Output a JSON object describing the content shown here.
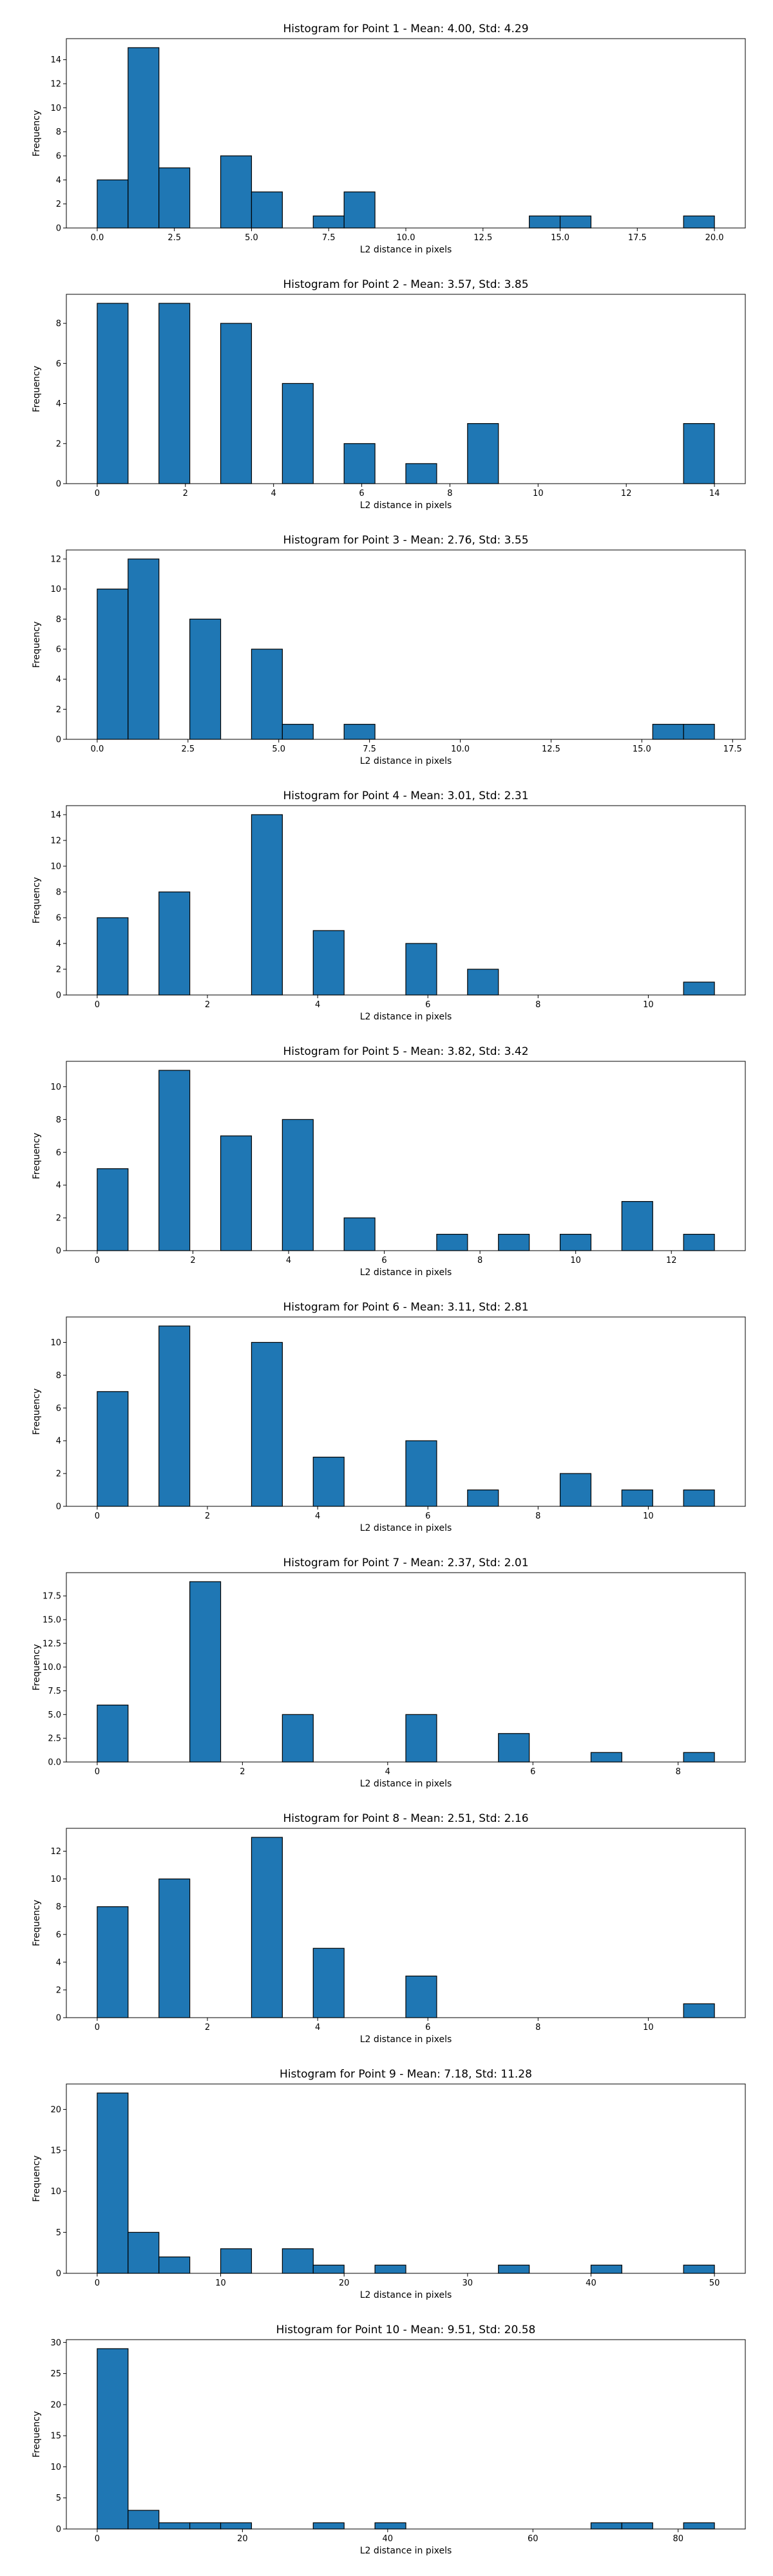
{
  "chart_data": [
    {
      "type": "bar",
      "title": "Histogram for Point 1 - Mean: 4.00, Std: 4.29",
      "xlabel": "L2 distance in pixels",
      "ylabel": "Frequency",
      "xlim": [
        -1.0,
        21.0
      ],
      "ylim": [
        0,
        15.75
      ],
      "xticks": [
        0.0,
        2.5,
        5.0,
        7.5,
        10.0,
        12.5,
        15.0,
        17.5,
        20.0
      ],
      "xtick_labels": [
        "0.0",
        "2.5",
        "5.0",
        "7.5",
        "10.0",
        "12.5",
        "15.0",
        "17.5",
        "20.0"
      ],
      "yticks": [
        0,
        2,
        4,
        6,
        8,
        10,
        12,
        14
      ],
      "ytick_labels": [
        "0",
        "2",
        "4",
        "6",
        "8",
        "10",
        "12",
        "14"
      ],
      "bins": [
        {
          "x0": 0.0,
          "x1": 1.0,
          "count": 4
        },
        {
          "x0": 1.0,
          "x1": 2.0,
          "count": 15
        },
        {
          "x0": 2.0,
          "x1": 3.0,
          "count": 5
        },
        {
          "x0": 4.0,
          "x1": 5.0,
          "count": 6
        },
        {
          "x0": 5.0,
          "x1": 6.0,
          "count": 3
        },
        {
          "x0": 7.0,
          "x1": 8.0,
          "count": 1
        },
        {
          "x0": 8.0,
          "x1": 9.0,
          "count": 3
        },
        {
          "x0": 14.0,
          "x1": 15.0,
          "count": 1
        },
        {
          "x0": 15.0,
          "x1": 16.0,
          "count": 1
        },
        {
          "x0": 19.0,
          "x1": 20.0,
          "count": 1
        }
      ]
    },
    {
      "type": "bar",
      "title": "Histogram for Point 2 - Mean: 3.57, Std: 3.85",
      "xlabel": "L2 distance in pixels",
      "ylabel": "Frequency",
      "xlim": [
        -0.7,
        14.7
      ],
      "ylim": [
        0,
        9.45
      ],
      "xticks": [
        0,
        2,
        4,
        6,
        8,
        10,
        12,
        14
      ],
      "xtick_labels": [
        "0",
        "2",
        "4",
        "6",
        "8",
        "10",
        "12",
        "14"
      ],
      "yticks": [
        0,
        2,
        4,
        6,
        8
      ],
      "ytick_labels": [
        "0",
        "2",
        "4",
        "6",
        "8"
      ],
      "bins": [
        {
          "x0": 0.0,
          "x1": 0.7,
          "count": 9
        },
        {
          "x0": 1.4,
          "x1": 2.1,
          "count": 9
        },
        {
          "x0": 2.8,
          "x1": 3.5,
          "count": 8
        },
        {
          "x0": 4.2,
          "x1": 4.9,
          "count": 5
        },
        {
          "x0": 5.6,
          "x1": 6.3,
          "count": 2
        },
        {
          "x0": 7.0,
          "x1": 7.7,
          "count": 1
        },
        {
          "x0": 8.4,
          "x1": 9.1,
          "count": 3
        },
        {
          "x0": 13.3,
          "x1": 14.0,
          "count": 3
        }
      ]
    },
    {
      "type": "bar",
      "title": "Histogram for Point 3 - Mean: 2.76, Std: 3.55",
      "xlabel": "L2 distance in pixels",
      "ylabel": "Frequency",
      "xlim": [
        -0.85,
        17.85
      ],
      "ylim": [
        0,
        12.6
      ],
      "xticks": [
        0.0,
        2.5,
        5.0,
        7.5,
        10.0,
        12.5,
        15.0,
        17.5
      ],
      "xtick_labels": [
        "0.0",
        "2.5",
        "5.0",
        "7.5",
        "10.0",
        "12.5",
        "15.0",
        "17.5"
      ],
      "yticks": [
        0,
        2,
        4,
        6,
        8,
        10,
        12
      ],
      "ytick_labels": [
        "0",
        "2",
        "4",
        "6",
        "8",
        "10",
        "12"
      ],
      "bins": [
        {
          "x0": 0.0,
          "x1": 0.85,
          "count": 10
        },
        {
          "x0": 0.85,
          "x1": 1.7,
          "count": 12
        },
        {
          "x0": 2.55,
          "x1": 3.4,
          "count": 8
        },
        {
          "x0": 4.25,
          "x1": 5.1,
          "count": 6
        },
        {
          "x0": 5.1,
          "x1": 5.95,
          "count": 1
        },
        {
          "x0": 6.8,
          "x1": 7.65,
          "count": 1
        },
        {
          "x0": 15.3,
          "x1": 16.15,
          "count": 1
        },
        {
          "x0": 16.15,
          "x1": 17.0,
          "count": 1
        }
      ]
    },
    {
      "type": "bar",
      "title": "Histogram for Point 4 - Mean: 3.01, Std: 2.31",
      "xlabel": "L2 distance in pixels",
      "ylabel": "Frequency",
      "xlim": [
        -0.56,
        11.76
      ],
      "ylim": [
        0,
        14.7
      ],
      "xticks": [
        0,
        2,
        4,
        6,
        8,
        10
      ],
      "xtick_labels": [
        "0",
        "2",
        "4",
        "6",
        "8",
        "10"
      ],
      "yticks": [
        0,
        2,
        4,
        6,
        8,
        10,
        12,
        14
      ],
      "ytick_labels": [
        "0",
        "2",
        "4",
        "6",
        "8",
        "10",
        "12",
        "14"
      ],
      "bins": [
        {
          "x0": 0.0,
          "x1": 0.56,
          "count": 6
        },
        {
          "x0": 1.12,
          "x1": 1.68,
          "count": 8
        },
        {
          "x0": 2.8,
          "x1": 3.36,
          "count": 14
        },
        {
          "x0": 3.92,
          "x1": 4.48,
          "count": 5
        },
        {
          "x0": 5.6,
          "x1": 6.16,
          "count": 4
        },
        {
          "x0": 6.72,
          "x1": 7.28,
          "count": 2
        },
        {
          "x0": 10.64,
          "x1": 11.2,
          "count": 1
        }
      ]
    },
    {
      "type": "bar",
      "title": "Histogram for Point 5 - Mean: 3.82, Std: 3.42",
      "xlabel": "L2 distance in pixels",
      "ylabel": "Frequency",
      "xlim": [
        -0.645,
        13.545
      ],
      "ylim": [
        0,
        11.55
      ],
      "xticks": [
        0,
        2,
        4,
        6,
        8,
        10,
        12
      ],
      "xtick_labels": [
        "0",
        "2",
        "4",
        "6",
        "8",
        "10",
        "12"
      ],
      "yticks": [
        0,
        2,
        4,
        6,
        8,
        10
      ],
      "ytick_labels": [
        "0",
        "2",
        "4",
        "6",
        "8",
        "10"
      ],
      "bins": [
        {
          "x0": 0.0,
          "x1": 0.645,
          "count": 5
        },
        {
          "x0": 1.29,
          "x1": 1.935,
          "count": 11
        },
        {
          "x0": 2.58,
          "x1": 3.225,
          "count": 7
        },
        {
          "x0": 3.87,
          "x1": 4.515,
          "count": 8
        },
        {
          "x0": 5.16,
          "x1": 5.805,
          "count": 2
        },
        {
          "x0": 7.095,
          "x1": 7.74,
          "count": 1
        },
        {
          "x0": 8.385,
          "x1": 9.03,
          "count": 1
        },
        {
          "x0": 9.675,
          "x1": 10.32,
          "count": 1
        },
        {
          "x0": 10.965,
          "x1": 11.61,
          "count": 3
        },
        {
          "x0": 12.255,
          "x1": 12.9,
          "count": 1
        }
      ]
    },
    {
      "type": "bar",
      "title": "Histogram for Point 6 - Mean: 3.11, Std: 2.81",
      "xlabel": "L2 distance in pixels",
      "ylabel": "Frequency",
      "xlim": [
        -0.56,
        11.76
      ],
      "ylim": [
        0,
        11.55
      ],
      "xticks": [
        0,
        2,
        4,
        6,
        8,
        10
      ],
      "xtick_labels": [
        "0",
        "2",
        "4",
        "6",
        "8",
        "10"
      ],
      "yticks": [
        0,
        2,
        4,
        6,
        8,
        10
      ],
      "ytick_labels": [
        "0",
        "2",
        "4",
        "6",
        "8",
        "10"
      ],
      "bins": [
        {
          "x0": 0.0,
          "x1": 0.56,
          "count": 7
        },
        {
          "x0": 1.12,
          "x1": 1.68,
          "count": 11
        },
        {
          "x0": 2.8,
          "x1": 3.36,
          "count": 10
        },
        {
          "x0": 3.92,
          "x1": 4.48,
          "count": 3
        },
        {
          "x0": 5.6,
          "x1": 6.16,
          "count": 4
        },
        {
          "x0": 6.72,
          "x1": 7.28,
          "count": 1
        },
        {
          "x0": 8.4,
          "x1": 8.96,
          "count": 2
        },
        {
          "x0": 9.52,
          "x1": 10.08,
          "count": 1
        },
        {
          "x0": 10.64,
          "x1": 11.2,
          "count": 1
        }
      ]
    },
    {
      "type": "bar",
      "title": "Histogram for Point 7 - Mean: 2.37, Std: 2.01",
      "xlabel": "L2 distance in pixels",
      "ylabel": "Frequency",
      "xlim": [
        -0.425,
        8.925
      ],
      "ylim": [
        0,
        19.95
      ],
      "xticks": [
        0,
        2,
        4,
        6,
        8
      ],
      "xtick_labels": [
        "0",
        "2",
        "4",
        "6",
        "8"
      ],
      "yticks": [
        0,
        2.5,
        5,
        7.5,
        10,
        12.5,
        15,
        17.5
      ],
      "ytick_labels": [
        "0.0",
        "2.5",
        "5.0",
        "7.5",
        "10.0",
        "12.5",
        "15.0",
        "17.5"
      ],
      "bins": [
        {
          "x0": 0.0,
          "x1": 0.425,
          "count": 6
        },
        {
          "x0": 1.275,
          "x1": 1.7,
          "count": 19
        },
        {
          "x0": 2.55,
          "x1": 2.975,
          "count": 5
        },
        {
          "x0": 4.25,
          "x1": 4.675,
          "count": 5
        },
        {
          "x0": 5.525,
          "x1": 5.95,
          "count": 3
        },
        {
          "x0": 6.8,
          "x1": 7.225,
          "count": 1
        },
        {
          "x0": 8.075,
          "x1": 8.5,
          "count": 1
        }
      ]
    },
    {
      "type": "bar",
      "title": "Histogram for Point 8 - Mean: 2.51, Std: 2.16",
      "xlabel": "L2 distance in pixels",
      "ylabel": "Frequency",
      "xlim": [
        -0.56,
        11.76
      ],
      "ylim": [
        0,
        13.65
      ],
      "xticks": [
        0,
        2,
        4,
        6,
        8,
        10
      ],
      "xtick_labels": [
        "0",
        "2",
        "4",
        "6",
        "8",
        "10"
      ],
      "yticks": [
        0,
        2,
        4,
        6,
        8,
        10,
        12
      ],
      "ytick_labels": [
        "0",
        "2",
        "4",
        "6",
        "8",
        "10",
        "12"
      ],
      "bins": [
        {
          "x0": 0.0,
          "x1": 0.56,
          "count": 8
        },
        {
          "x0": 1.12,
          "x1": 1.68,
          "count": 10
        },
        {
          "x0": 2.8,
          "x1": 3.36,
          "count": 13
        },
        {
          "x0": 3.92,
          "x1": 4.48,
          "count": 5
        },
        {
          "x0": 5.6,
          "x1": 6.16,
          "count": 3
        },
        {
          "x0": 10.64,
          "x1": 11.2,
          "count": 1
        }
      ]
    },
    {
      "type": "bar",
      "title": "Histogram for Point 9 - Mean: 7.18, Std: 11.28",
      "xlabel": "L2 distance in pixels",
      "ylabel": "Frequency",
      "xlim": [
        -2.5,
        52.5
      ],
      "ylim": [
        0,
        23.1
      ],
      "xticks": [
        0,
        10,
        20,
        30,
        40,
        50
      ],
      "xtick_labels": [
        "0",
        "10",
        "20",
        "30",
        "40",
        "50"
      ],
      "yticks": [
        0,
        5,
        10,
        15,
        20
      ],
      "ytick_labels": [
        "0",
        "5",
        "10",
        "15",
        "20"
      ],
      "bins": [
        {
          "x0": 0.0,
          "x1": 2.5,
          "count": 22
        },
        {
          "x0": 2.5,
          "x1": 5.0,
          "count": 5
        },
        {
          "x0": 5.0,
          "x1": 7.5,
          "count": 2
        },
        {
          "x0": 10.0,
          "x1": 12.5,
          "count": 3
        },
        {
          "x0": 15.0,
          "x1": 17.5,
          "count": 3
        },
        {
          "x0": 17.5,
          "x1": 20.0,
          "count": 1
        },
        {
          "x0": 22.5,
          "x1": 25.0,
          "count": 1
        },
        {
          "x0": 32.5,
          "x1": 35.0,
          "count": 1
        },
        {
          "x0": 40.0,
          "x1": 42.5,
          "count": 1
        },
        {
          "x0": 47.5,
          "x1": 50.0,
          "count": 1
        }
      ]
    },
    {
      "type": "bar",
      "title": "Histogram for Point 10 - Mean: 9.51, Std: 20.58",
      "xlabel": "L2 distance in pixels",
      "ylabel": "Frequency",
      "xlim": [
        -4.25,
        89.25
      ],
      "ylim": [
        0,
        30.45
      ],
      "xticks": [
        0,
        20,
        40,
        60,
        80
      ],
      "xtick_labels": [
        "0",
        "20",
        "40",
        "60",
        "80"
      ],
      "yticks": [
        0,
        5,
        10,
        15,
        20,
        25,
        30
      ],
      "ytick_labels": [
        "0",
        "5",
        "10",
        "15",
        "20",
        "25",
        "30"
      ],
      "bins": [
        {
          "x0": 0.0,
          "x1": 4.25,
          "count": 29
        },
        {
          "x0": 4.25,
          "x1": 8.5,
          "count": 3
        },
        {
          "x0": 8.5,
          "x1": 12.75,
          "count": 1
        },
        {
          "x0": 12.75,
          "x1": 17.0,
          "count": 1
        },
        {
          "x0": 17.0,
          "x1": 21.25,
          "count": 1
        },
        {
          "x0": 29.75,
          "x1": 34.0,
          "count": 1
        },
        {
          "x0": 38.25,
          "x1": 42.5,
          "count": 1
        },
        {
          "x0": 68.0,
          "x1": 72.25,
          "count": 1
        },
        {
          "x0": 72.25,
          "x1": 76.5,
          "count": 1
        },
        {
          "x0": 80.75,
          "x1": 85.0,
          "count": 1
        }
      ]
    }
  ]
}
